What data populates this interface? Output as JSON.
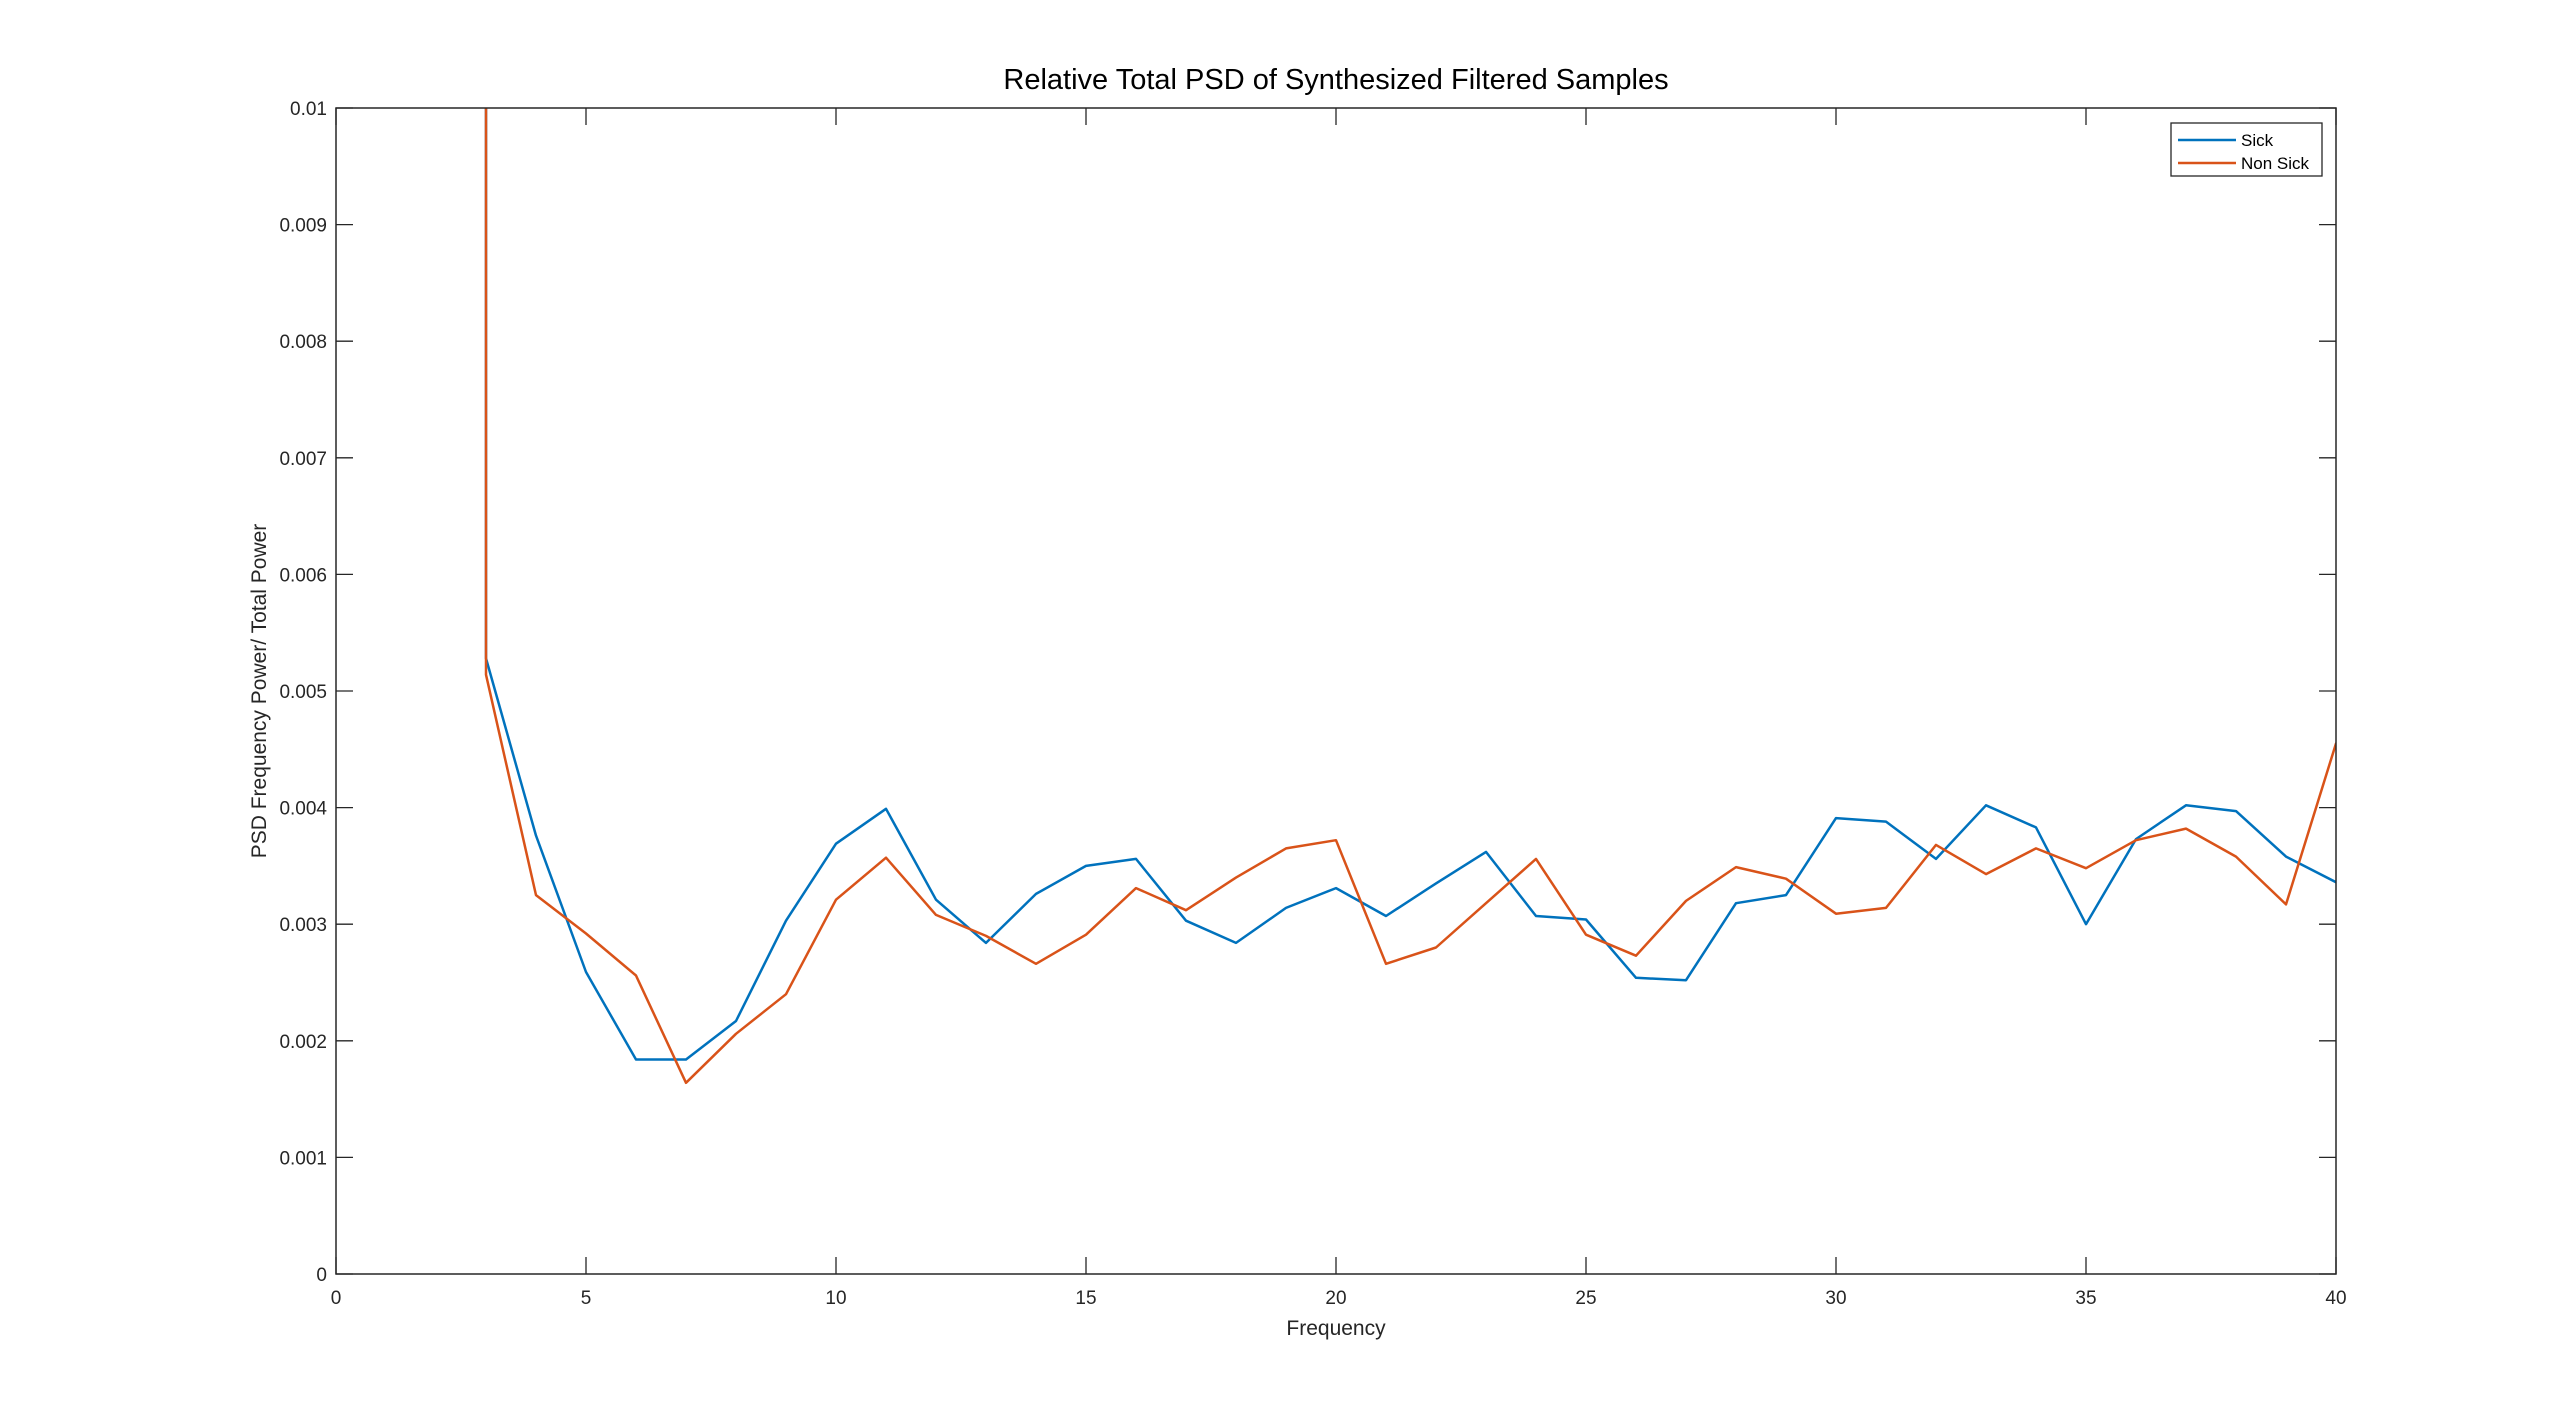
{
  "chart_data": {
    "type": "line",
    "title": "Relative Total PSD of Synthesized Filtered Samples",
    "xlabel": "Frequency",
    "ylabel": "PSD Frequency Power/ Total Power",
    "xlim": [
      0,
      40
    ],
    "ylim": [
      0,
      0.01
    ],
    "xticks": [
      0,
      5,
      10,
      15,
      20,
      25,
      30,
      35,
      40
    ],
    "xtick_labels": [
      "0",
      "5",
      "10",
      "15",
      "20",
      "25",
      "30",
      "35",
      "40"
    ],
    "yticks": [
      0,
      0.001,
      0.002,
      0.003,
      0.004,
      0.005,
      0.006,
      0.007,
      0.008,
      0.009,
      0.01
    ],
    "ytick_labels": [
      "0",
      "0.001",
      "0.002",
      "0.003",
      "0.004",
      "0.005",
      "0.006",
      "0.007",
      "0.008",
      "0.009",
      "0.01"
    ],
    "grid": false,
    "legend_position": "top-right",
    "series": [
      {
        "name": "Sick",
        "color": "#0072BD",
        "x": [
          3,
          3,
          4,
          5,
          6,
          7,
          8,
          9,
          10,
          11,
          12,
          13,
          14,
          15,
          16,
          17,
          18,
          19,
          20,
          21,
          22,
          23,
          24,
          25,
          26,
          27,
          28,
          29,
          30,
          31,
          32,
          33,
          34,
          35,
          36,
          37,
          38,
          39,
          40
        ],
        "values": [
          0.0111,
          0.00528,
          0.00376,
          0.00259,
          0.00184,
          0.00184,
          0.00217,
          0.00303,
          0.00369,
          0.00399,
          0.00321,
          0.00284,
          0.00326,
          0.0035,
          0.00356,
          0.00303,
          0.00284,
          0.00314,
          0.00331,
          0.00307,
          0.00335,
          0.00362,
          0.00307,
          0.00304,
          0.00254,
          0.00252,
          0.00318,
          0.00325,
          0.00391,
          0.00388,
          0.00356,
          0.00402,
          0.00383,
          0.003,
          0.00373,
          0.00402,
          0.00397,
          0.00358,
          0.00336
        ]
      },
      {
        "name": "Non Sick",
        "color": "#D95319",
        "x": [
          3,
          3,
          4,
          5,
          6,
          7,
          8,
          9,
          10,
          11,
          12,
          13,
          14,
          15,
          16,
          17,
          18,
          19,
          20,
          21,
          22,
          23,
          24,
          25,
          26,
          27,
          28,
          29,
          30,
          31,
          32,
          33,
          34,
          35,
          36,
          37,
          38,
          39,
          40
        ],
        "values": [
          0.0111,
          0.00514,
          0.00325,
          0.00292,
          0.00256,
          0.00164,
          0.00206,
          0.0024,
          0.00321,
          0.00357,
          0.00308,
          0.0029,
          0.00266,
          0.00291,
          0.00331,
          0.00312,
          0.0034,
          0.00365,
          0.00372,
          0.00266,
          0.0028,
          0.00318,
          0.00356,
          0.00291,
          0.00273,
          0.0032,
          0.00349,
          0.00339,
          0.00309,
          0.00314,
          0.00368,
          0.00343,
          0.00365,
          0.00348,
          0.00372,
          0.00382,
          0.00358,
          0.00317,
          0.00455
        ]
      }
    ]
  }
}
